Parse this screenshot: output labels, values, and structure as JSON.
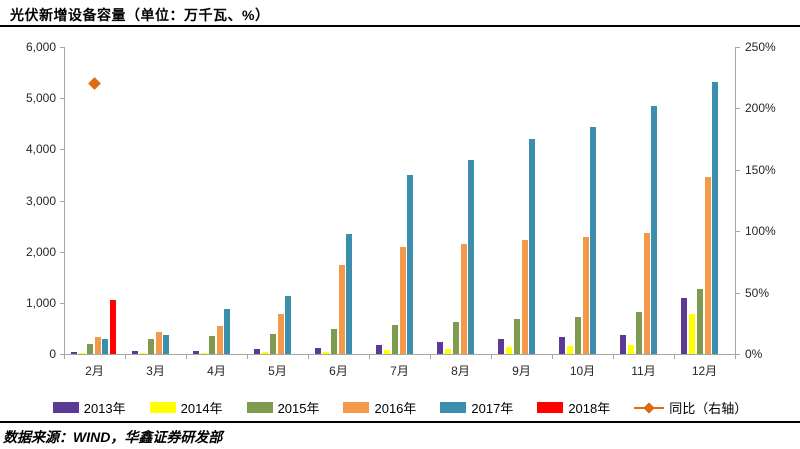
{
  "title": "光伏新增设备容量（单位：万千瓦、%）",
  "footer": "数据来源：WIND，华鑫证券研发部",
  "colors": {
    "y2013": "#5b3a96",
    "y2014": "#ffff00",
    "y2015": "#7e9b50",
    "y2016": "#f2994a",
    "y2017": "#3d8eac",
    "y2018": "#ff0000",
    "yoy": "#e06a10",
    "axis": "#a6a6a6",
    "title_text": "#000000"
  },
  "chart_data": {
    "type": "bar",
    "title": "光伏新增设备容量（单位：万千瓦、%）",
    "categories": [
      "2月",
      "3月",
      "4月",
      "5月",
      "6月",
      "7月",
      "8月",
      "9月",
      "10月",
      "11月",
      "12月"
    ],
    "series": [
      {
        "name": "2013年",
        "color": "#5b3a96",
        "axis": "left",
        "values": [
          40,
          50,
          65,
          90,
          120,
          180,
          230,
          300,
          330,
          380,
          1100
        ]
      },
      {
        "name": "2014年",
        "color": "#ffff00",
        "axis": "left",
        "values": [
          20,
          10,
          20,
          30,
          40,
          70,
          100,
          130,
          150,
          180,
          790
        ]
      },
      {
        "name": "2015年",
        "color": "#7e9b50",
        "axis": "left",
        "values": [
          190,
          300,
          360,
          390,
          490,
          570,
          620,
          680,
          720,
          820,
          1280
        ]
      },
      {
        "name": "2016年",
        "color": "#f2994a",
        "axis": "left",
        "values": [
          340,
          430,
          550,
          780,
          1730,
          2090,
          2150,
          2230,
          2290,
          2370,
          3450
        ]
      },
      {
        "name": "2017年",
        "color": "#3d8eac",
        "axis": "left",
        "values": [
          300,
          370,
          870,
          1130,
          2340,
          3490,
          3800,
          4200,
          4440,
          4850,
          5310
        ]
      },
      {
        "name": "2018年",
        "color": "#ff0000",
        "axis": "left",
        "values": [
          1060,
          null,
          null,
          null,
          null,
          null,
          null,
          null,
          null,
          null,
          null
        ]
      },
      {
        "name": "同比（右轴）",
        "color": "#e06a10",
        "axis": "right",
        "marker": "diamond",
        "values": [
          220,
          null,
          null,
          null,
          null,
          null,
          null,
          null,
          null,
          null,
          null
        ]
      }
    ],
    "left_axis": {
      "min": 0,
      "max": 6000,
      "step": 1000,
      "labels": [
        "0",
        "1,000",
        "2,000",
        "3,000",
        "4,000",
        "5,000",
        "6,000"
      ]
    },
    "right_axis": {
      "min": 0,
      "max": 250,
      "step": 50,
      "labels": [
        "0%",
        "50%",
        "100%",
        "150%",
        "200%",
        "250%"
      ]
    },
    "grid": false,
    "legend_position": "bottom"
  },
  "legend": {
    "items": [
      {
        "label": "2013年",
        "color": "#5b3a96",
        "marker": "rect"
      },
      {
        "label": "2014年",
        "color": "#ffff00",
        "marker": "rect"
      },
      {
        "label": "2015年",
        "color": "#7e9b50",
        "marker": "rect"
      },
      {
        "label": "2016年",
        "color": "#f2994a",
        "marker": "rect"
      },
      {
        "label": "2017年",
        "color": "#3d8eac",
        "marker": "rect"
      },
      {
        "label": "2018年",
        "color": "#ff0000",
        "marker": "rect"
      },
      {
        "label": "同比（右轴）",
        "color": "#e06a10",
        "marker": "diamond-line"
      }
    ]
  }
}
